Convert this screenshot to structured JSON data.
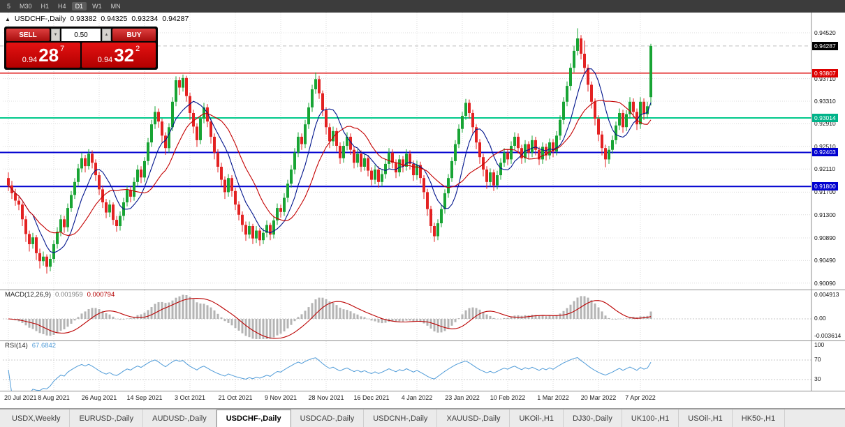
{
  "toolbar": {
    "items": [
      "5",
      "M30",
      "H1",
      "H4",
      "D1",
      "W1",
      "MN"
    ],
    "active": "D1"
  },
  "header": {
    "collapse_icon": "▲",
    "symbol": "USDCHF-,Daily",
    "open": "0.93382",
    "high": "0.94325",
    "low": "0.93234",
    "close": "0.94287"
  },
  "trade_panel": {
    "sell_label": "SELL",
    "buy_label": "BUY",
    "volume": "0.50",
    "icons": {
      "volume_down": "▼",
      "volume_up": "▲"
    },
    "sell_price": {
      "prefix": "0.94",
      "big": "28",
      "sup": "7"
    },
    "buy_price": {
      "prefix": "0.94",
      "big": "32",
      "sup": "2"
    }
  },
  "price_axis": {
    "labels": [
      "0.94520",
      "0.93710",
      "0.93310",
      "0.92910",
      "0.92510",
      "0.92110",
      "0.91700",
      "0.91300",
      "0.90890",
      "0.90490",
      "0.90090"
    ],
    "badges": [
      {
        "text": "0.94287",
        "value": 0.94287,
        "bg": "#000000"
      },
      {
        "text": "0.93807",
        "value": 0.93807,
        "bg": "#dd0000"
      },
      {
        "text": "0.93014",
        "value": 0.93014,
        "bg": "#00b389"
      },
      {
        "text": "0.92403",
        "value": 0.92403,
        "bg": "#0000d0"
      },
      {
        "text": "0.91800",
        "value": 0.918,
        "bg": "#0000d0"
      }
    ]
  },
  "indicators": {
    "macd": {
      "label": "MACD(12,26,9)",
      "main_value": "0.001959",
      "signal_value": "0.000794",
      "axis_labels": [
        "0.004913",
        "0.00",
        "-0.003614"
      ],
      "axis_values": [
        0.004913,
        0,
        -0.003614
      ]
    },
    "rsi": {
      "label": "RSI(14)",
      "value": "67.6842",
      "axis_labels": [
        "100",
        "70",
        "30"
      ],
      "axis_values": [
        100,
        70,
        30
      ],
      "levels": [
        70,
        30
      ]
    }
  },
  "tabs": [
    {
      "label": "USDX,Weekly",
      "active": false
    },
    {
      "label": "EURUSD-,Daily",
      "active": false
    },
    {
      "label": "AUDUSD-,Daily",
      "active": false
    },
    {
      "label": "USDCHF-,Daily",
      "active": true
    },
    {
      "label": "USDCAD-,Daily",
      "active": false
    },
    {
      "label": "USDCNH-,Daily",
      "active": false
    },
    {
      "label": "XAUUSD-,Daily",
      "active": false
    },
    {
      "label": "UKOil-,H1",
      "active": false
    },
    {
      "label": "DJ30-,Daily",
      "active": false
    },
    {
      "label": "UK100-,H1",
      "active": false
    },
    {
      "label": "USOil-,H1",
      "active": false
    },
    {
      "label": "HK50-,H1",
      "active": false
    }
  ],
  "chart_data": {
    "type": "candlestick",
    "symbol": "USDCHF-,Daily",
    "bid": 0.94287,
    "colors": {
      "up": "#18a434",
      "down": "#e32222",
      "macd_hist": "#b4b4b4",
      "macd_signal": "#bb0000",
      "rsi": "#4f9bd8"
    },
    "overlays": [
      {
        "name": "ma-fast",
        "period": 8,
        "color": "#00148c"
      },
      {
        "name": "ma-slow",
        "period": 16,
        "color": "#c40000"
      }
    ],
    "hlines": [
      {
        "price": 0.93807,
        "color": "#dd0000",
        "width": 1.4
      },
      {
        "price": 0.93014,
        "color": "#00c98a",
        "width": 2
      },
      {
        "price": 0.92403,
        "color": "#0000d0",
        "width": 2
      },
      {
        "price": 0.918,
        "color": "#0000d0",
        "width": 2
      }
    ],
    "x_tick_indices": [
      0,
      13,
      26,
      39,
      52,
      65,
      78,
      91,
      104,
      117,
      130,
      143,
      156,
      169,
      181
    ],
    "x_tick_labels": [
      "20 Jul 2021",
      "8 Aug 2021",
      "26 Aug 2021",
      "14 Sep 2021",
      "3 Oct 2021",
      "21 Oct 2021",
      "9 Nov 2021",
      "28 Nov 2021",
      "16 Dec 2021",
      "4 Jan 2022",
      "23 Jan 2022",
      "10 Feb 2022",
      "1 Mar 2022",
      "20 Mar 2022",
      "7 Apr 2022"
    ],
    "candles": [
      [
        0.9195,
        0.9205,
        0.9172,
        0.9182
      ],
      [
        0.9182,
        0.919,
        0.9158,
        0.9168
      ],
      [
        0.9168,
        0.9176,
        0.9146,
        0.9155
      ],
      [
        0.9155,
        0.9162,
        0.9138,
        0.9148
      ],
      [
        0.9148,
        0.9152,
        0.911,
        0.9122
      ],
      [
        0.9122,
        0.9128,
        0.9082,
        0.9096
      ],
      [
        0.9096,
        0.9102,
        0.9065,
        0.9078
      ],
      [
        0.9078,
        0.9098,
        0.907,
        0.909
      ],
      [
        0.909,
        0.9094,
        0.905,
        0.9062
      ],
      [
        0.9062,
        0.907,
        0.9035,
        0.9048
      ],
      [
        0.9048,
        0.9065,
        0.904,
        0.9056
      ],
      [
        0.9056,
        0.906,
        0.9026,
        0.9038
      ],
      [
        0.9038,
        0.906,
        0.903,
        0.9052
      ],
      [
        0.9052,
        0.9085,
        0.9045,
        0.9078
      ],
      [
        0.9078,
        0.9108,
        0.907,
        0.91
      ],
      [
        0.91,
        0.913,
        0.9092,
        0.9122
      ],
      [
        0.9122,
        0.9128,
        0.9098,
        0.9108
      ],
      [
        0.9108,
        0.915,
        0.91,
        0.9142
      ],
      [
        0.9142,
        0.9172,
        0.9135,
        0.9165
      ],
      [
        0.9165,
        0.9195,
        0.9158,
        0.9188
      ],
      [
        0.9188,
        0.922,
        0.918,
        0.9212
      ],
      [
        0.9212,
        0.924,
        0.9205,
        0.923
      ],
      [
        0.923,
        0.9236,
        0.9205,
        0.9216
      ],
      [
        0.9216,
        0.9246,
        0.921,
        0.9238
      ],
      [
        0.9238,
        0.9244,
        0.9212,
        0.9222
      ],
      [
        0.9222,
        0.9228,
        0.919,
        0.92
      ],
      [
        0.92,
        0.9206,
        0.9165,
        0.9175
      ],
      [
        0.9175,
        0.9182,
        0.9142,
        0.9152
      ],
      [
        0.9152,
        0.9158,
        0.9124,
        0.9134
      ],
      [
        0.9134,
        0.9156,
        0.9126,
        0.9148
      ],
      [
        0.9148,
        0.9152,
        0.9112,
        0.9121
      ],
      [
        0.9121,
        0.9128,
        0.91,
        0.911
      ],
      [
        0.911,
        0.9136,
        0.9102,
        0.9128
      ],
      [
        0.9128,
        0.916,
        0.912,
        0.9152
      ],
      [
        0.9152,
        0.9182,
        0.9145,
        0.9174
      ],
      [
        0.9174,
        0.918,
        0.9152,
        0.9162
      ],
      [
        0.9162,
        0.9196,
        0.9155,
        0.9188
      ],
      [
        0.9188,
        0.9218,
        0.918,
        0.921
      ],
      [
        0.921,
        0.9216,
        0.9186,
        0.9196
      ],
      [
        0.9196,
        0.9232,
        0.9188,
        0.9225
      ],
      [
        0.9225,
        0.9266,
        0.9218,
        0.9258
      ],
      [
        0.9258,
        0.9298,
        0.925,
        0.929
      ],
      [
        0.929,
        0.9322,
        0.9282,
        0.9312
      ],
      [
        0.9312,
        0.9318,
        0.9284,
        0.9295
      ],
      [
        0.9295,
        0.93,
        0.9258,
        0.927
      ],
      [
        0.927,
        0.9276,
        0.9236,
        0.9248
      ],
      [
        0.9248,
        0.9292,
        0.924,
        0.9285
      ],
      [
        0.9285,
        0.9338,
        0.9278,
        0.933
      ],
      [
        0.933,
        0.9375,
        0.9322,
        0.9368
      ],
      [
        0.9368,
        0.9374,
        0.9342,
        0.9355
      ],
      [
        0.9355,
        0.9378,
        0.9348,
        0.9372
      ],
      [
        0.9372,
        0.9376,
        0.933,
        0.934
      ],
      [
        0.934,
        0.9346,
        0.9298,
        0.931
      ],
      [
        0.931,
        0.9316,
        0.9274,
        0.9286
      ],
      [
        0.9286,
        0.9292,
        0.925,
        0.9262
      ],
      [
        0.9262,
        0.9306,
        0.9255,
        0.93
      ],
      [
        0.93,
        0.9328,
        0.9292,
        0.932
      ],
      [
        0.932,
        0.9326,
        0.9285,
        0.9295
      ],
      [
        0.9295,
        0.93,
        0.9256,
        0.9268
      ],
      [
        0.9268,
        0.9274,
        0.9228,
        0.924
      ],
      [
        0.924,
        0.9246,
        0.9205,
        0.9215
      ],
      [
        0.9215,
        0.9222,
        0.918,
        0.9192
      ],
      [
        0.9192,
        0.9198,
        0.9158,
        0.917
      ],
      [
        0.917,
        0.9202,
        0.9162,
        0.9195
      ],
      [
        0.9195,
        0.92,
        0.9162,
        0.9172
      ],
      [
        0.9172,
        0.9178,
        0.9138,
        0.9148
      ],
      [
        0.9148,
        0.9154,
        0.912,
        0.913
      ],
      [
        0.913,
        0.9136,
        0.91,
        0.9112
      ],
      [
        0.9112,
        0.9118,
        0.9084,
        0.9095
      ],
      [
        0.9095,
        0.9118,
        0.9088,
        0.911
      ],
      [
        0.911,
        0.9114,
        0.9078,
        0.9088
      ],
      [
        0.9088,
        0.911,
        0.908,
        0.9102
      ],
      [
        0.9102,
        0.9106,
        0.9075,
        0.9085
      ],
      [
        0.9085,
        0.9106,
        0.9078,
        0.9098
      ],
      [
        0.9098,
        0.912,
        0.909,
        0.9112
      ],
      [
        0.9112,
        0.9116,
        0.9085,
        0.9095
      ],
      [
        0.9095,
        0.9128,
        0.9088,
        0.912
      ],
      [
        0.912,
        0.915,
        0.9112,
        0.9142
      ],
      [
        0.9142,
        0.9148,
        0.9125,
        0.9135
      ],
      [
        0.9135,
        0.9168,
        0.9128,
        0.916
      ],
      [
        0.916,
        0.9192,
        0.9152,
        0.9185
      ],
      [
        0.9185,
        0.9218,
        0.9178,
        0.921
      ],
      [
        0.921,
        0.9248,
        0.9202,
        0.924
      ],
      [
        0.924,
        0.9276,
        0.9232,
        0.9268
      ],
      [
        0.9268,
        0.9274,
        0.9245,
        0.9255
      ],
      [
        0.9255,
        0.9298,
        0.9248,
        0.929
      ],
      [
        0.929,
        0.9328,
        0.9282,
        0.932
      ],
      [
        0.932,
        0.936,
        0.9312,
        0.9352
      ],
      [
        0.9352,
        0.9382,
        0.9344,
        0.937
      ],
      [
        0.937,
        0.9376,
        0.9335,
        0.9345
      ],
      [
        0.9345,
        0.935,
        0.9305,
        0.9315
      ],
      [
        0.9315,
        0.932,
        0.9272,
        0.9285
      ],
      [
        0.9285,
        0.9292,
        0.9248,
        0.926
      ],
      [
        0.926,
        0.9286,
        0.9252,
        0.9278
      ],
      [
        0.9278,
        0.9284,
        0.9242,
        0.9252
      ],
      [
        0.9252,
        0.9258,
        0.922,
        0.923
      ],
      [
        0.923,
        0.926,
        0.9222,
        0.9252
      ],
      [
        0.9252,
        0.9276,
        0.9244,
        0.9268
      ],
      [
        0.9268,
        0.9274,
        0.9236,
        0.9245
      ],
      [
        0.9245,
        0.925,
        0.9212,
        0.9222
      ],
      [
        0.9222,
        0.9246,
        0.9214,
        0.9238
      ],
      [
        0.9238,
        0.9244,
        0.9206,
        0.9215
      ],
      [
        0.9215,
        0.9238,
        0.9208,
        0.923
      ],
      [
        0.923,
        0.9236,
        0.9198,
        0.9208
      ],
      [
        0.9208,
        0.9214,
        0.9182,
        0.9192
      ],
      [
        0.9192,
        0.9218,
        0.9184,
        0.921
      ],
      [
        0.921,
        0.9216,
        0.9178,
        0.9188
      ],
      [
        0.9188,
        0.921,
        0.918,
        0.9202
      ],
      [
        0.9202,
        0.9228,
        0.9194,
        0.922
      ],
      [
        0.922,
        0.9248,
        0.9212,
        0.924
      ],
      [
        0.924,
        0.9246,
        0.9212,
        0.9222
      ],
      [
        0.9222,
        0.9228,
        0.9195,
        0.9205
      ],
      [
        0.9205,
        0.9236,
        0.9198,
        0.9228
      ],
      [
        0.9228,
        0.9234,
        0.9205,
        0.9215
      ],
      [
        0.9215,
        0.9246,
        0.9208,
        0.9238
      ],
      [
        0.9238,
        0.9244,
        0.921,
        0.922
      ],
      [
        0.922,
        0.9226,
        0.919,
        0.92
      ],
      [
        0.92,
        0.9226,
        0.9192,
        0.9218
      ],
      [
        0.9218,
        0.9224,
        0.9185,
        0.9195
      ],
      [
        0.9195,
        0.92,
        0.9158,
        0.917
      ],
      [
        0.917,
        0.9176,
        0.9128,
        0.914
      ],
      [
        0.914,
        0.9146,
        0.9098,
        0.911
      ],
      [
        0.911,
        0.9116,
        0.9082,
        0.9092
      ],
      [
        0.9092,
        0.9122,
        0.9085,
        0.9115
      ],
      [
        0.9115,
        0.9148,
        0.9108,
        0.914
      ],
      [
        0.914,
        0.9175,
        0.9132,
        0.9168
      ],
      [
        0.9168,
        0.9202,
        0.916,
        0.9195
      ],
      [
        0.9195,
        0.9232,
        0.9188,
        0.9225
      ],
      [
        0.9225,
        0.9262,
        0.9218,
        0.9255
      ],
      [
        0.9255,
        0.929,
        0.9248,
        0.9282
      ],
      [
        0.9282,
        0.9312,
        0.9275,
        0.9305
      ],
      [
        0.9305,
        0.9335,
        0.9298,
        0.9328
      ],
      [
        0.9328,
        0.9334,
        0.93,
        0.931
      ],
      [
        0.931,
        0.9316,
        0.9272,
        0.9285
      ],
      [
        0.9285,
        0.929,
        0.9246,
        0.9258
      ],
      [
        0.9258,
        0.9264,
        0.922,
        0.9232
      ],
      [
        0.9232,
        0.9238,
        0.9198,
        0.921
      ],
      [
        0.921,
        0.9216,
        0.9176,
        0.9188
      ],
      [
        0.9188,
        0.9212,
        0.918,
        0.9205
      ],
      [
        0.9205,
        0.921,
        0.9172,
        0.9182
      ],
      [
        0.9182,
        0.9208,
        0.9175,
        0.92
      ],
      [
        0.92,
        0.923,
        0.9192,
        0.9222
      ],
      [
        0.9222,
        0.9248,
        0.9215,
        0.924
      ],
      [
        0.924,
        0.9246,
        0.9218,
        0.9228
      ],
      [
        0.9228,
        0.926,
        0.922,
        0.9252
      ],
      [
        0.9252,
        0.9276,
        0.9244,
        0.9268
      ],
      [
        0.9268,
        0.9274,
        0.9238,
        0.9248
      ],
      [
        0.9248,
        0.9254,
        0.922,
        0.923
      ],
      [
        0.923,
        0.9262,
        0.9222,
        0.9255
      ],
      [
        0.9255,
        0.926,
        0.923,
        0.924
      ],
      [
        0.924,
        0.927,
        0.9232,
        0.9262
      ],
      [
        0.9262,
        0.9268,
        0.9235,
        0.9245
      ],
      [
        0.9245,
        0.925,
        0.9218,
        0.9228
      ],
      [
        0.9228,
        0.9258,
        0.922,
        0.925
      ],
      [
        0.925,
        0.9256,
        0.9226,
        0.9235
      ],
      [
        0.9235,
        0.9265,
        0.9228,
        0.9258
      ],
      [
        0.9258,
        0.9264,
        0.9232,
        0.9242
      ],
      [
        0.9242,
        0.9278,
        0.9235,
        0.927
      ],
      [
        0.927,
        0.9306,
        0.9262,
        0.9298
      ],
      [
        0.9298,
        0.9338,
        0.929,
        0.933
      ],
      [
        0.933,
        0.9366,
        0.9322,
        0.9358
      ],
      [
        0.9358,
        0.9398,
        0.935,
        0.939
      ],
      [
        0.939,
        0.9428,
        0.9382,
        0.942
      ],
      [
        0.942,
        0.946,
        0.9412,
        0.9442
      ],
      [
        0.9442,
        0.9448,
        0.9405,
        0.9415
      ],
      [
        0.9415,
        0.9438,
        0.938,
        0.939
      ],
      [
        0.939,
        0.9396,
        0.9348,
        0.936
      ],
      [
        0.936,
        0.9366,
        0.9318,
        0.933
      ],
      [
        0.933,
        0.9336,
        0.9288,
        0.93
      ],
      [
        0.93,
        0.9306,
        0.926,
        0.9272
      ],
      [
        0.9272,
        0.9278,
        0.9235,
        0.9248
      ],
      [
        0.9248,
        0.9254,
        0.9214,
        0.9228
      ],
      [
        0.9228,
        0.9252,
        0.922,
        0.9245
      ],
      [
        0.9245,
        0.927,
        0.9238,
        0.9262
      ],
      [
        0.9262,
        0.9295,
        0.9255,
        0.9288
      ],
      [
        0.9288,
        0.9318,
        0.928,
        0.931
      ],
      [
        0.931,
        0.9316,
        0.9275,
        0.9285
      ],
      [
        0.9285,
        0.9315,
        0.9278,
        0.9308
      ],
      [
        0.9308,
        0.9338,
        0.93,
        0.933
      ],
      [
        0.933,
        0.9336,
        0.9302,
        0.9312
      ],
      [
        0.9312,
        0.9318,
        0.928,
        0.929
      ],
      [
        0.929,
        0.9338,
        0.9282,
        0.933
      ],
      [
        0.933,
        0.9336,
        0.9298,
        0.9308
      ],
      [
        0.9308,
        0.933,
        0.93,
        0.9322
      ],
      [
        0.93382,
        0.94325,
        0.93234,
        0.94287
      ]
    ]
  }
}
